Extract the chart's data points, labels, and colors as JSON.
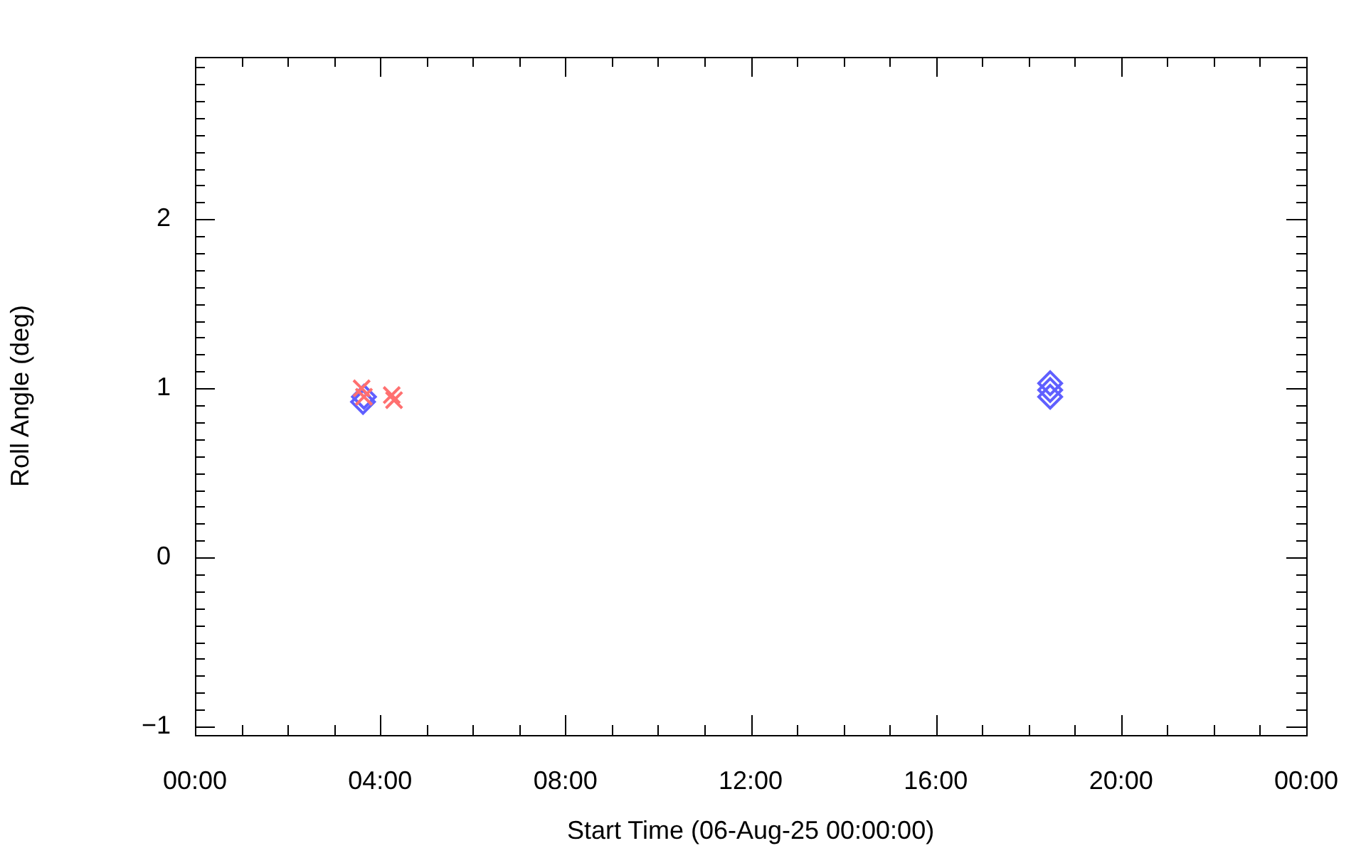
{
  "chart_data": {
    "type": "scatter",
    "xlabel": "Start Time (06-Aug-25 00:00:00)",
    "ylabel": "Roll Angle (deg)",
    "xlim": [
      0,
      24
    ],
    "ylim": [
      -1.05,
      2.96
    ],
    "xticks": [
      {
        "value": 0,
        "label": "00:00"
      },
      {
        "value": 1,
        "label": null
      },
      {
        "value": 2,
        "label": null
      },
      {
        "value": 3,
        "label": null
      },
      {
        "value": 4,
        "label": "04:00"
      },
      {
        "value": 5,
        "label": null
      },
      {
        "value": 6,
        "label": null
      },
      {
        "value": 7,
        "label": null
      },
      {
        "value": 8,
        "label": "08:00"
      },
      {
        "value": 9,
        "label": null
      },
      {
        "value": 10,
        "label": null
      },
      {
        "value": 11,
        "label": null
      },
      {
        "value": 12,
        "label": "12:00"
      },
      {
        "value": 13,
        "label": null
      },
      {
        "value": 14,
        "label": null
      },
      {
        "value": 15,
        "label": null
      },
      {
        "value": 16,
        "label": "16:00"
      },
      {
        "value": 17,
        "label": null
      },
      {
        "value": 18,
        "label": null
      },
      {
        "value": 19,
        "label": null
      },
      {
        "value": 20,
        "label": "20:00"
      },
      {
        "value": 21,
        "label": null
      },
      {
        "value": 22,
        "label": null
      },
      {
        "value": 23,
        "label": null
      },
      {
        "value": 24,
        "label": "00:00"
      }
    ],
    "yticks": [
      {
        "value": -1,
        "label": "−1"
      },
      {
        "value": -0.9,
        "label": null
      },
      {
        "value": -0.8,
        "label": null
      },
      {
        "value": -0.7,
        "label": null
      },
      {
        "value": -0.6,
        "label": null
      },
      {
        "value": -0.5,
        "label": null
      },
      {
        "value": -0.4,
        "label": null
      },
      {
        "value": -0.3,
        "label": null
      },
      {
        "value": -0.2,
        "label": null
      },
      {
        "value": -0.1,
        "label": null
      },
      {
        "value": 0,
        "label": "0"
      },
      {
        "value": 0.1,
        "label": null
      },
      {
        "value": 0.2,
        "label": null
      },
      {
        "value": 0.3,
        "label": null
      },
      {
        "value": 0.4,
        "label": null
      },
      {
        "value": 0.5,
        "label": null
      },
      {
        "value": 0.6,
        "label": null
      },
      {
        "value": 0.7,
        "label": null
      },
      {
        "value": 0.8,
        "label": null
      },
      {
        "value": 0.9,
        "label": null
      },
      {
        "value": 1,
        "label": "1"
      },
      {
        "value": 1.1,
        "label": null
      },
      {
        "value": 1.2,
        "label": null
      },
      {
        "value": 1.3,
        "label": null
      },
      {
        "value": 1.4,
        "label": null
      },
      {
        "value": 1.5,
        "label": null
      },
      {
        "value": 1.6,
        "label": null
      },
      {
        "value": 1.7,
        "label": null
      },
      {
        "value": 1.8,
        "label": null
      },
      {
        "value": 1.9,
        "label": null
      },
      {
        "value": 2,
        "label": "2"
      },
      {
        "value": 2.1,
        "label": null
      },
      {
        "value": 2.2,
        "label": null
      },
      {
        "value": 2.3,
        "label": null
      },
      {
        "value": 2.4,
        "label": null
      },
      {
        "value": 2.5,
        "label": null
      },
      {
        "value": 2.6,
        "label": null
      },
      {
        "value": 2.7,
        "label": null
      },
      {
        "value": 2.8,
        "label": null
      },
      {
        "value": 2.9,
        "label": null
      }
    ],
    "grid": false,
    "legend": false,
    "series": [
      {
        "color": "#ff7070",
        "marker": "cross",
        "x": [
          3.6,
          3.65,
          4.25,
          4.3
        ],
        "values": [
          1.0,
          0.95,
          0.96,
          0.93
        ]
      },
      {
        "color": "#5f5fff",
        "marker": "diamond",
        "x": [
          3.63,
          3.65,
          18.47,
          18.47,
          18.47
        ],
        "values": [
          0.92,
          0.95,
          1.03,
          0.99,
          0.95
        ]
      }
    ]
  }
}
